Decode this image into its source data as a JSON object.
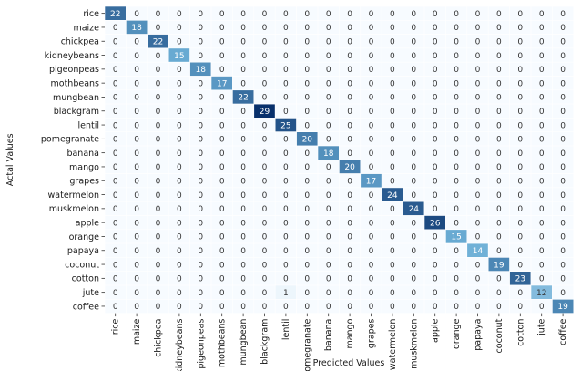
{
  "chart_data": {
    "type": "heatmap",
    "title": "",
    "xlabel": "Predicted Values",
    "ylabel": "Actal Values",
    "row_labels": [
      "rice",
      "maize",
      "chickpea",
      "kidneybeans",
      "pigeonpeas",
      "mothbeans",
      "mungbean",
      "blackgram",
      "lentil",
      "pomegranate",
      "banana",
      "mango",
      "grapes",
      "watermelon",
      "muskmelon",
      "apple",
      "orange",
      "papaya",
      "coconut",
      "cotton",
      "jute",
      "coffee"
    ],
    "col_labels": [
      "rice",
      "maize",
      "chickpea",
      "kidneybeans",
      "pigeonpeas",
      "mothbeans",
      "mungbean",
      "blackgram",
      "lentil",
      "pomegranate",
      "banana",
      "mango",
      "grapes",
      "watermelon",
      "muskmelon",
      "apple",
      "orange",
      "papaya",
      "coconut",
      "cotton",
      "jute",
      "coffee"
    ],
    "values": [
      [
        22,
        0,
        0,
        0,
        0,
        0,
        0,
        0,
        0,
        0,
        0,
        0,
        0,
        0,
        0,
        0,
        0,
        0,
        0,
        0,
        0,
        0
      ],
      [
        0,
        18,
        0,
        0,
        0,
        0,
        0,
        0,
        0,
        0,
        0,
        0,
        0,
        0,
        0,
        0,
        0,
        0,
        0,
        0,
        0,
        0
      ],
      [
        0,
        0,
        22,
        0,
        0,
        0,
        0,
        0,
        0,
        0,
        0,
        0,
        0,
        0,
        0,
        0,
        0,
        0,
        0,
        0,
        0,
        0
      ],
      [
        0,
        0,
        0,
        15,
        0,
        0,
        0,
        0,
        0,
        0,
        0,
        0,
        0,
        0,
        0,
        0,
        0,
        0,
        0,
        0,
        0,
        0
      ],
      [
        0,
        0,
        0,
        0,
        18,
        0,
        0,
        0,
        0,
        0,
        0,
        0,
        0,
        0,
        0,
        0,
        0,
        0,
        0,
        0,
        0,
        0
      ],
      [
        0,
        0,
        0,
        0,
        0,
        17,
        0,
        0,
        0,
        0,
        0,
        0,
        0,
        0,
        0,
        0,
        0,
        0,
        0,
        0,
        0,
        0
      ],
      [
        0,
        0,
        0,
        0,
        0,
        0,
        22,
        0,
        0,
        0,
        0,
        0,
        0,
        0,
        0,
        0,
        0,
        0,
        0,
        0,
        0,
        0
      ],
      [
        0,
        0,
        0,
        0,
        0,
        0,
        0,
        29,
        0,
        0,
        0,
        0,
        0,
        0,
        0,
        0,
        0,
        0,
        0,
        0,
        0,
        0
      ],
      [
        0,
        0,
        0,
        0,
        0,
        0,
        0,
        0,
        25,
        0,
        0,
        0,
        0,
        0,
        0,
        0,
        0,
        0,
        0,
        0,
        0,
        0
      ],
      [
        0,
        0,
        0,
        0,
        0,
        0,
        0,
        0,
        0,
        20,
        0,
        0,
        0,
        0,
        0,
        0,
        0,
        0,
        0,
        0,
        0,
        0
      ],
      [
        0,
        0,
        0,
        0,
        0,
        0,
        0,
        0,
        0,
        0,
        18,
        0,
        0,
        0,
        0,
        0,
        0,
        0,
        0,
        0,
        0,
        0
      ],
      [
        0,
        0,
        0,
        0,
        0,
        0,
        0,
        0,
        0,
        0,
        0,
        20,
        0,
        0,
        0,
        0,
        0,
        0,
        0,
        0,
        0,
        0
      ],
      [
        0,
        0,
        0,
        0,
        0,
        0,
        0,
        0,
        0,
        0,
        0,
        0,
        17,
        0,
        0,
        0,
        0,
        0,
        0,
        0,
        0,
        0
      ],
      [
        0,
        0,
        0,
        0,
        0,
        0,
        0,
        0,
        0,
        0,
        0,
        0,
        0,
        24,
        0,
        0,
        0,
        0,
        0,
        0,
        0,
        0
      ],
      [
        0,
        0,
        0,
        0,
        0,
        0,
        0,
        0,
        0,
        0,
        0,
        0,
        0,
        0,
        24,
        0,
        0,
        0,
        0,
        0,
        0,
        0
      ],
      [
        0,
        0,
        0,
        0,
        0,
        0,
        0,
        0,
        0,
        0,
        0,
        0,
        0,
        0,
        0,
        26,
        0,
        0,
        0,
        0,
        0,
        0
      ],
      [
        0,
        0,
        0,
        0,
        0,
        0,
        0,
        0,
        0,
        0,
        0,
        0,
        0,
        0,
        0,
        0,
        15,
        0,
        0,
        0,
        0,
        0
      ],
      [
        0,
        0,
        0,
        0,
        0,
        0,
        0,
        0,
        0,
        0,
        0,
        0,
        0,
        0,
        0,
        0,
        0,
        14,
        0,
        0,
        0,
        0
      ],
      [
        0,
        0,
        0,
        0,
        0,
        0,
        0,
        0,
        0,
        0,
        0,
        0,
        0,
        0,
        0,
        0,
        0,
        0,
        19,
        0,
        0,
        0
      ],
      [
        0,
        0,
        0,
        0,
        0,
        0,
        0,
        0,
        0,
        0,
        0,
        0,
        0,
        0,
        0,
        0,
        0,
        0,
        0,
        23,
        0,
        0
      ],
      [
        0,
        0,
        0,
        0,
        0,
        0,
        0,
        0,
        1,
        0,
        0,
        0,
        0,
        0,
        0,
        0,
        0,
        0,
        0,
        0,
        12,
        0
      ],
      [
        0,
        0,
        0,
        0,
        0,
        0,
        0,
        0,
        0,
        0,
        0,
        0,
        0,
        0,
        0,
        0,
        0,
        0,
        0,
        0,
        0,
        19
      ]
    ],
    "col_tick_labels": [
      "rice",
      "maize",
      "chickpea",
      "kidneybeans",
      "pigeonpeas",
      "mothbeans",
      "mungbean",
      "blackgram",
      "lentil",
      "pomegranate",
      "banana",
      "mango",
      "grapes",
      "watermelon",
      "muskmelon",
      "apple",
      "orange",
      "papaya",
      "coconut",
      "cotton",
      "jute",
      "coffee"
    ],
    "vmin": 0,
    "vmax": 29,
    "colormap": "Blues",
    "colors": {
      "low": "#f7fbff",
      "mid": "#6baed6",
      "high": "#08306b",
      "text_dark": "#333333",
      "text_light": "#ffffff"
    },
    "grid": true,
    "colorbar": false
  }
}
